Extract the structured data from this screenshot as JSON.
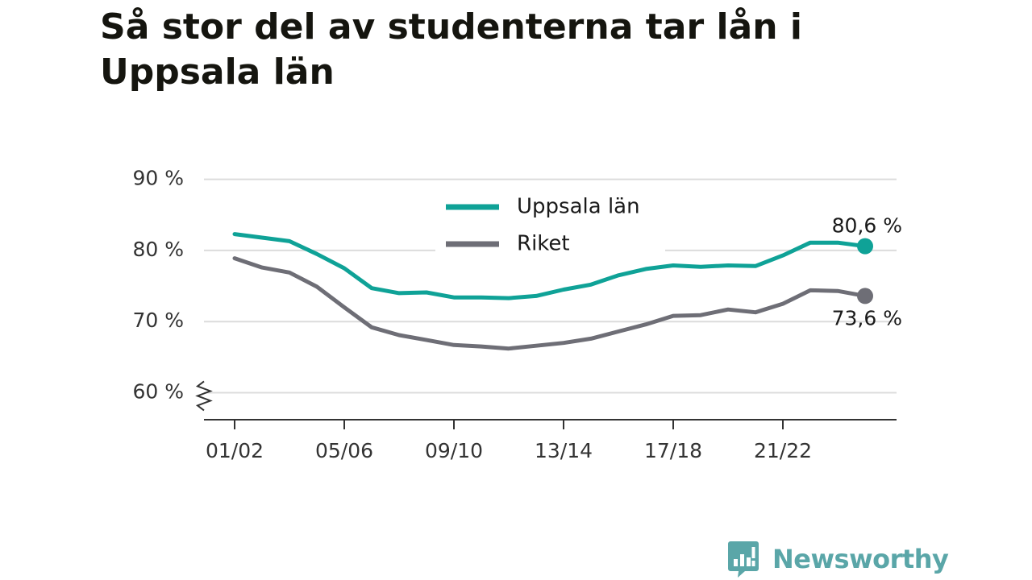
{
  "title": "Så stor del av studenterna tar lån i Uppsala län",
  "brand": {
    "name": "Newsworthy",
    "color": "#5aa6a8"
  },
  "chart_data": {
    "type": "line",
    "title": "Så stor del av studenterna tar lån i Uppsala län",
    "xlabel": "",
    "ylabel": "",
    "x": [
      "01/02",
      "02/03",
      "03/04",
      "04/05",
      "05/06",
      "06/07",
      "07/08",
      "08/09",
      "09/10",
      "10/11",
      "11/12",
      "12/13",
      "13/14",
      "14/15",
      "15/16",
      "16/17",
      "17/18",
      "18/19",
      "19/20",
      "20/21",
      "21/22",
      "22/23",
      "23/24",
      "24/25"
    ],
    "x_tick_labels": [
      "01/02",
      "05/06",
      "09/10",
      "13/14",
      "17/18",
      "21/22"
    ],
    "y_tick_labels": [
      "60 %",
      "70 %",
      "80 %",
      "90 %"
    ],
    "y_ticks": [
      60,
      70,
      80,
      90
    ],
    "ylim": [
      56.2,
      92
    ],
    "y_axis_break": true,
    "grid": true,
    "legend_position": "top-center",
    "series": [
      {
        "name": "Uppsala län",
        "color": "#0fa297",
        "values": [
          82.3,
          81.8,
          81.3,
          79.5,
          77.5,
          74.7,
          74.0,
          74.1,
          73.4,
          73.4,
          73.3,
          73.6,
          74.5,
          75.2,
          76.5,
          77.4,
          77.9,
          77.7,
          77.9,
          77.8,
          79.3,
          81.1,
          81.1,
          80.6
        ],
        "end_label": "80,6 %"
      },
      {
        "name": "Riket",
        "color": "#6e6e76",
        "values": [
          78.9,
          77.6,
          76.9,
          74.9,
          72.0,
          69.2,
          68.1,
          67.4,
          66.7,
          66.5,
          66.2,
          66.6,
          67.0,
          67.6,
          68.6,
          69.6,
          70.8,
          70.9,
          71.7,
          71.3,
          72.5,
          74.4,
          74.3,
          73.6
        ],
        "end_label": "73,6 %"
      }
    ]
  }
}
